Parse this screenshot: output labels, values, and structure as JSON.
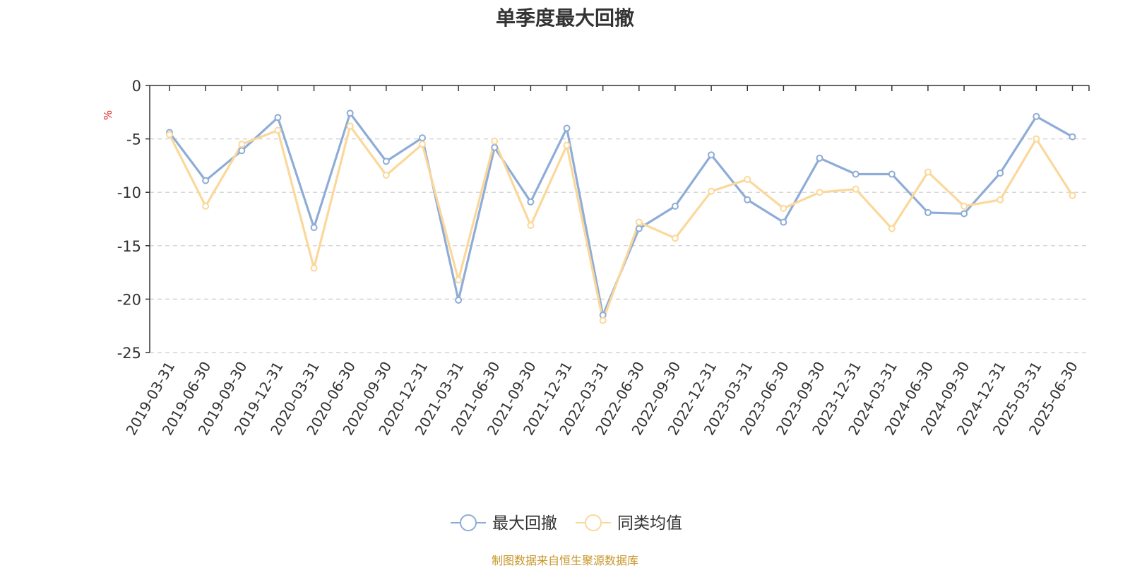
{
  "chart_data": {
    "type": "line",
    "title": "单季度最大回撤",
    "ylabel": "%",
    "ylim": [
      -25,
      0
    ],
    "yticks": [
      0,
      -5,
      -10,
      -15,
      -20,
      -25
    ],
    "grid": true,
    "legend_position": "bottom",
    "categories": [
      "2019-03-31",
      "2019-06-30",
      "2019-09-30",
      "2019-12-31",
      "2020-03-31",
      "2020-06-30",
      "2020-09-30",
      "2020-12-31",
      "2021-03-31",
      "2021-06-30",
      "2021-09-30",
      "2021-12-31",
      "2022-03-31",
      "2022-06-30",
      "2022-09-30",
      "2022-12-31",
      "2023-03-31",
      "2023-06-30",
      "2023-09-30",
      "2023-12-31",
      "2024-03-31",
      "2024-06-30",
      "2024-09-30",
      "2024-12-31",
      "2025-03-31",
      "2025-06-30"
    ],
    "series": [
      {
        "name": "最大回撤",
        "color": "#8eacd8",
        "values": [
          -4.4,
          -8.9,
          -6.1,
          -3.0,
          -13.3,
          -2.6,
          -7.1,
          -4.9,
          -20.1,
          -5.8,
          -10.9,
          -4.0,
          -21.5,
          -13.4,
          -11.3,
          -6.5,
          -10.7,
          -12.8,
          -6.8,
          -8.3,
          -8.3,
          -11.9,
          -12.0,
          -8.2,
          -2.9,
          -4.8
        ]
      },
      {
        "name": "同类均值",
        "color": "#fbd89a",
        "values": [
          -4.6,
          -11.3,
          -5.5,
          -4.2,
          -17.1,
          -3.8,
          -8.4,
          -5.5,
          -18.2,
          -5.2,
          -13.1,
          -5.6,
          -22.0,
          -12.8,
          -14.3,
          -9.9,
          -8.8,
          -11.5,
          -10.0,
          -9.7,
          -13.4,
          -8.1,
          -11.3,
          -10.7,
          -5.0,
          -10.3
        ]
      }
    ]
  },
  "source_note": "制图数据来自恒生聚源数据库"
}
